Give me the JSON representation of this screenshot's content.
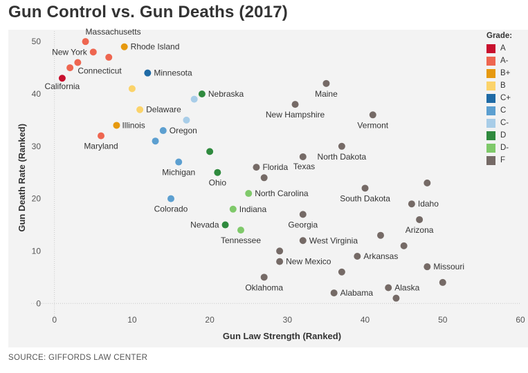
{
  "title": "Gun Control vs. Gun Deaths (2017)",
  "source": "SOURCE: GIFFORDS LAW CENTER",
  "chart_data": {
    "type": "scatter",
    "title": "Gun Control vs. Gun Deaths (2017)",
    "xlabel": "Gun Law Strength (Ranked)",
    "ylabel": "Gun Death Rate (Ranked)",
    "xlim": [
      -3,
      60
    ],
    "ylim": [
      -3,
      52
    ],
    "xticks": [
      0,
      10,
      20,
      30,
      40,
      50,
      60
    ],
    "yticks": [
      0,
      10,
      20,
      30,
      40,
      50
    ],
    "grid": false,
    "legend_title": "Grade:",
    "legend_position": "right",
    "grades": [
      {
        "grade": "A",
        "color": "#c8102e"
      },
      {
        "grade": "A-",
        "color": "#ee6650"
      },
      {
        "grade": "B+",
        "color": "#e6990f"
      },
      {
        "grade": "B",
        "color": "#fbd36a"
      },
      {
        "grade": "C+",
        "color": "#1f6aa5"
      },
      {
        "grade": "C",
        "color": "#5c9fd0"
      },
      {
        "grade": "C-",
        "color": "#a8cde8"
      },
      {
        "grade": "D",
        "color": "#2f8a3e"
      },
      {
        "grade": "D-",
        "color": "#7fc96a"
      },
      {
        "grade": "F",
        "color": "#756a66"
      }
    ],
    "points": [
      {
        "x": 1,
        "y": 43,
        "grade": "A",
        "label": "California"
      },
      {
        "x": 2,
        "y": 45,
        "grade": "A-",
        "label": ""
      },
      {
        "x": 3,
        "y": 46,
        "grade": "A-",
        "label": "Connecticut"
      },
      {
        "x": 4,
        "y": 50,
        "grade": "A-",
        "label": "Massachusetts"
      },
      {
        "x": 5,
        "y": 48,
        "grade": "A-",
        "label": "New York"
      },
      {
        "x": 6,
        "y": 32,
        "grade": "A-",
        "label": "Maryland"
      },
      {
        "x": 7,
        "y": 47,
        "grade": "A-",
        "label": ""
      },
      {
        "x": 8,
        "y": 34,
        "grade": "B+",
        "label": "Illinois"
      },
      {
        "x": 9,
        "y": 49,
        "grade": "B+",
        "label": "Rhode Island"
      },
      {
        "x": 10,
        "y": 41,
        "grade": "B",
        "label": ""
      },
      {
        "x": 11,
        "y": 37,
        "grade": "B",
        "label": "Delaware"
      },
      {
        "x": 12,
        "y": 44,
        "grade": "C+",
        "label": "Minnesota"
      },
      {
        "x": 13,
        "y": 31,
        "grade": "C",
        "label": ""
      },
      {
        "x": 14,
        "y": 33,
        "grade": "C",
        "label": "Oregon"
      },
      {
        "x": 15,
        "y": 20,
        "grade": "C",
        "label": "Colorado"
      },
      {
        "x": 16,
        "y": 27,
        "grade": "C",
        "label": "Michigan"
      },
      {
        "x": 17,
        "y": 35,
        "grade": "C-",
        "label": ""
      },
      {
        "x": 18,
        "y": 39,
        "grade": "C-",
        "label": ""
      },
      {
        "x": 19,
        "y": 40,
        "grade": "D",
        "label": "Nebraska"
      },
      {
        "x": 20,
        "y": 29,
        "grade": "D",
        "label": ""
      },
      {
        "x": 21,
        "y": 25,
        "grade": "D",
        "label": "Ohio"
      },
      {
        "x": 22,
        "y": 15,
        "grade": "D",
        "label": "Nevada"
      },
      {
        "x": 23,
        "y": 18,
        "grade": "D-",
        "label": "Indiana"
      },
      {
        "x": 24,
        "y": 14,
        "grade": "D-",
        "label": "Tennessee"
      },
      {
        "x": 25,
        "y": 21,
        "grade": "D-",
        "label": "North Carolina"
      },
      {
        "x": 26,
        "y": 26,
        "grade": "F",
        "label": "Florida"
      },
      {
        "x": 27,
        "y": 24,
        "grade": "F",
        "label": ""
      },
      {
        "x": 27,
        "y": 5,
        "grade": "F",
        "label": "Oklahoma"
      },
      {
        "x": 29,
        "y": 10,
        "grade": "F",
        "label": ""
      },
      {
        "x": 29,
        "y": 8,
        "grade": "F",
        "label": "New Mexico"
      },
      {
        "x": 31,
        "y": 38,
        "grade": "F",
        "label": "New Hampshire"
      },
      {
        "x": 32,
        "y": 28,
        "grade": "F",
        "label": "Texas"
      },
      {
        "x": 32,
        "y": 17,
        "grade": "F",
        "label": "Georgia"
      },
      {
        "x": 32,
        "y": 12,
        "grade": "F",
        "label": "West Virginia"
      },
      {
        "x": 35,
        "y": 42,
        "grade": "F",
        "label": "Maine"
      },
      {
        "x": 36,
        "y": 2,
        "grade": "F",
        "label": "Alabama"
      },
      {
        "x": 37,
        "y": 30,
        "grade": "F",
        "label": "North Dakota"
      },
      {
        "x": 37,
        "y": 6,
        "grade": "F",
        "label": ""
      },
      {
        "x": 39,
        "y": 9,
        "grade": "F",
        "label": "Arkansas"
      },
      {
        "x": 40,
        "y": 22,
        "grade": "F",
        "label": "South Dakota"
      },
      {
        "x": 41,
        "y": 36,
        "grade": "F",
        "label": "Vermont"
      },
      {
        "x": 42,
        "y": 13,
        "grade": "F",
        "label": ""
      },
      {
        "x": 43,
        "y": 3,
        "grade": "F",
        "label": "Alaska"
      },
      {
        "x": 44,
        "y": 1,
        "grade": "F",
        "label": ""
      },
      {
        "x": 45,
        "y": 11,
        "grade": "F",
        "label": ""
      },
      {
        "x": 46,
        "y": 19,
        "grade": "F",
        "label": "Idaho"
      },
      {
        "x": 47,
        "y": 16,
        "grade": "F",
        "label": "Arizona"
      },
      {
        "x": 48,
        "y": 23,
        "grade": "F",
        "label": ""
      },
      {
        "x": 48,
        "y": 7,
        "grade": "F",
        "label": "Missouri"
      },
      {
        "x": 50,
        "y": 4,
        "grade": "F",
        "label": ""
      }
    ]
  }
}
